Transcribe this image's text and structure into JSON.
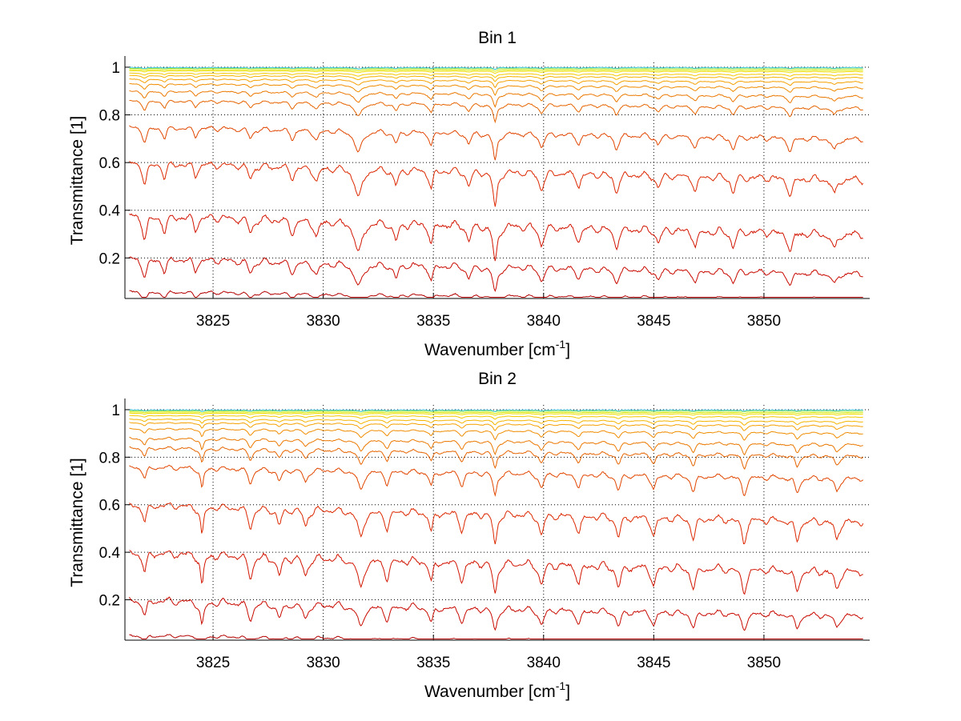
{
  "chart_data": [
    {
      "type": "line",
      "title": "Bin 1",
      "xlabel": "Wavenumber [cm",
      "xlabel_sup": "-1",
      "xlabel_end": "]",
      "ylabel": "Transmittance [1]",
      "xlim": [
        3821.0,
        3854.8
      ],
      "ylim": [
        0.03,
        1.02
      ],
      "xticks": [
        3825,
        3830,
        3835,
        3840,
        3845,
        3850
      ],
      "yticks": [
        0.2,
        0.4,
        0.6,
        0.8,
        1
      ],
      "yticklabels": [
        "0.2",
        "0.4",
        "0.6",
        "0.8",
        "1"
      ],
      "grid": true,
      "series_baselines": [
        0.06,
        0.2,
        0.38,
        0.6,
        0.75,
        0.86,
        0.9,
        0.93,
        0.95,
        0.965,
        0.975,
        0.985,
        0.99,
        0.995,
        1.0
      ],
      "series_colors": [
        "#b40000",
        "#c80a00",
        "#d21400",
        "#dc2800",
        "#e14600",
        "#e66400",
        "#eb7800",
        "#f08c00",
        "#f5a000",
        "#f5b400",
        "#f5c800",
        "#f0dc00",
        "#d7eb00",
        "#96e13c",
        "#3cc8e1"
      ],
      "absorption_lines": [
        {
          "x": 3821.9,
          "depth": 0.35,
          "width": 0.12
        },
        {
          "x": 3822.8,
          "depth": 0.25,
          "width": 0.1
        },
        {
          "x": 3824.2,
          "depth": 0.2,
          "width": 0.1
        },
        {
          "x": 3826.7,
          "depth": 0.22,
          "width": 0.12
        },
        {
          "x": 3828.6,
          "depth": 0.2,
          "width": 0.12
        },
        {
          "x": 3829.7,
          "depth": 0.25,
          "width": 0.12
        },
        {
          "x": 3831.6,
          "depth": 0.55,
          "width": 0.18
        },
        {
          "x": 3833.3,
          "depth": 0.28,
          "width": 0.12
        },
        {
          "x": 3834.9,
          "depth": 0.32,
          "width": 0.1
        },
        {
          "x": 3836.6,
          "depth": 0.25,
          "width": 0.12
        },
        {
          "x": 3837.8,
          "depth": 0.7,
          "width": 0.1
        },
        {
          "x": 3839.9,
          "depth": 0.3,
          "width": 0.12
        },
        {
          "x": 3841.6,
          "depth": 0.2,
          "width": 0.12
        },
        {
          "x": 3843.3,
          "depth": 0.3,
          "width": 0.12
        },
        {
          "x": 3845.2,
          "depth": 0.2,
          "width": 0.12
        },
        {
          "x": 3846.9,
          "depth": 0.25,
          "width": 0.12
        },
        {
          "x": 3848.6,
          "depth": 0.25,
          "width": 0.12
        },
        {
          "x": 3851.2,
          "depth": 0.3,
          "width": 0.12
        },
        {
          "x": 3853.2,
          "depth": 0.28,
          "width": 0.12
        }
      ]
    },
    {
      "type": "line",
      "title": "Bin 2",
      "xlabel": "Wavenumber [cm",
      "xlabel_sup": "-1",
      "xlabel_end": "]",
      "ylabel": "Transmittance [1]",
      "xlim": [
        3821.0,
        3854.8
      ],
      "ylim": [
        0.03,
        1.02
      ],
      "xticks": [
        3825,
        3830,
        3835,
        3840,
        3845,
        3850
      ],
      "yticks": [
        0.2,
        0.4,
        0.6,
        0.8,
        1
      ],
      "yticklabels": [
        "0.2",
        "0.4",
        "0.6",
        "0.8",
        "1"
      ],
      "grid": true,
      "series_baselines": [
        0.05,
        0.2,
        0.4,
        0.6,
        0.76,
        0.84,
        0.88,
        0.92,
        0.945,
        0.96,
        0.975,
        0.985,
        0.99,
        0.995,
        1.0
      ],
      "series_colors": [
        "#b40000",
        "#c80a00",
        "#d21400",
        "#dc2800",
        "#e14600",
        "#e66400",
        "#eb7800",
        "#f08c00",
        "#f5a000",
        "#f5b400",
        "#f5c800",
        "#f0dc00",
        "#d7eb00",
        "#96e13c",
        "#3cc8e1"
      ],
      "absorption_lines": [
        {
          "x": 3821.9,
          "depth": 0.3,
          "width": 0.1
        },
        {
          "x": 3824.5,
          "depth": 0.55,
          "width": 0.08
        },
        {
          "x": 3826.7,
          "depth": 0.35,
          "width": 0.12
        },
        {
          "x": 3828.0,
          "depth": 0.3,
          "width": 0.12
        },
        {
          "x": 3829.2,
          "depth": 0.3,
          "width": 0.12
        },
        {
          "x": 3831.7,
          "depth": 0.5,
          "width": 0.15
        },
        {
          "x": 3832.9,
          "depth": 0.3,
          "width": 0.12
        },
        {
          "x": 3834.9,
          "depth": 0.35,
          "width": 0.1
        },
        {
          "x": 3836.3,
          "depth": 0.3,
          "width": 0.12
        },
        {
          "x": 3837.8,
          "depth": 0.55,
          "width": 0.1
        },
        {
          "x": 3839.9,
          "depth": 0.35,
          "width": 0.12
        },
        {
          "x": 3841.6,
          "depth": 0.3,
          "width": 0.12
        },
        {
          "x": 3843.4,
          "depth": 0.35,
          "width": 0.12
        },
        {
          "x": 3845.0,
          "depth": 0.3,
          "width": 0.12
        },
        {
          "x": 3846.8,
          "depth": 0.35,
          "width": 0.12
        },
        {
          "x": 3849.1,
          "depth": 0.4,
          "width": 0.12
        },
        {
          "x": 3851.5,
          "depth": 0.35,
          "width": 0.12
        },
        {
          "x": 3853.3,
          "depth": 0.3,
          "width": 0.12
        }
      ]
    }
  ]
}
